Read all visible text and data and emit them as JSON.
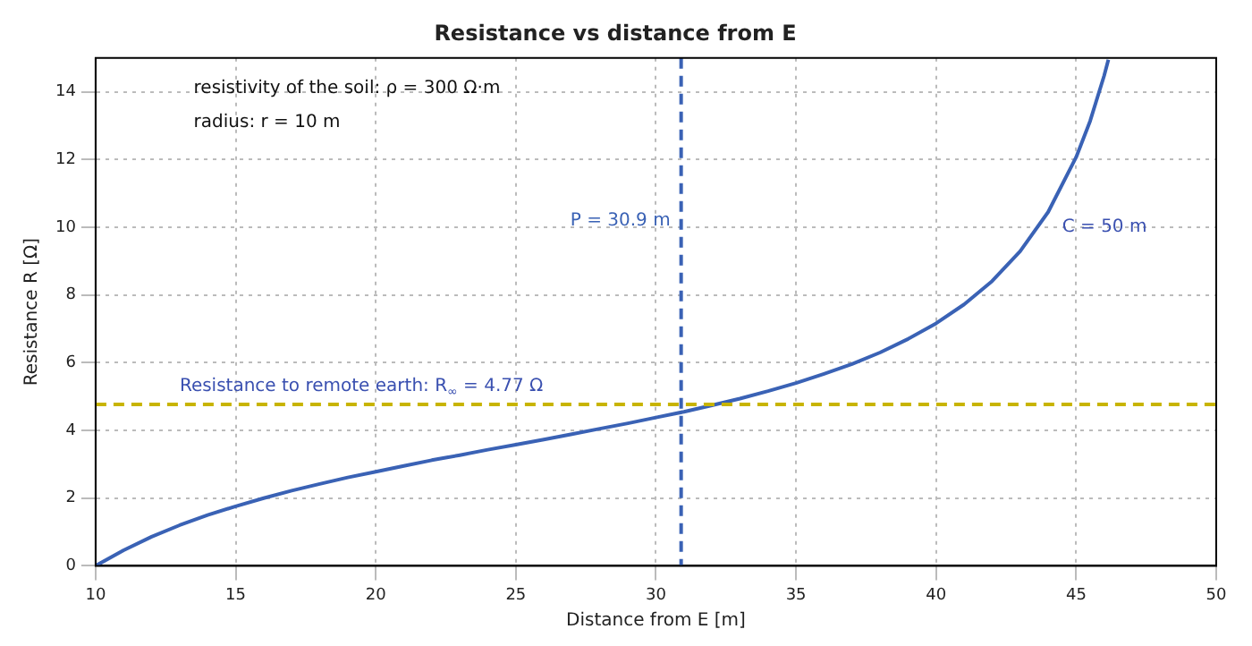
{
  "chart_data": {
    "type": "line",
    "title": "Resistance vs distance from E",
    "xlabel": "Distance from E [m]",
    "ylabel": "Resistance R [Ω]",
    "series": [
      {
        "color": "#3a62b5",
        "x": [
          10,
          11,
          12,
          13,
          14,
          15,
          16,
          17,
          18,
          19,
          20,
          21,
          22,
          23,
          24,
          25,
          26,
          27,
          28,
          29,
          30,
          31,
          32,
          33,
          34,
          35,
          36,
          37,
          38,
          39,
          40,
          41,
          42,
          43,
          44,
          45,
          45.5,
          46,
          46.15
        ],
        "values": [
          0,
          0.46,
          0.86,
          1.2,
          1.5,
          1.76,
          2,
          2.22,
          2.42,
          2.61,
          2.78,
          2.95,
          3.12,
          3.27,
          3.43,
          3.58,
          3.73,
          3.89,
          4.05,
          4.21,
          4.38,
          4.55,
          4.74,
          4.94,
          5.16,
          5.4,
          5.67,
          5.96,
          6.3,
          6.7,
          7.16,
          7.72,
          8.41,
          9.29,
          10.45,
          12.07,
          13.14,
          14.48,
          14.95
        ]
      }
    ],
    "xlim": [
      10,
      50
    ],
    "xticks": [
      10,
      15,
      20,
      25,
      30,
      35,
      40,
      45,
      50
    ],
    "ylim": [
      0,
      15
    ],
    "yticks": [
      0,
      2,
      4,
      6,
      8,
      10,
      12,
      14
    ],
    "grid": true,
    "legend": false,
    "marker": "none",
    "line_style": "solid",
    "ref_lines": [
      {
        "axis": "x",
        "value": 30.9,
        "label": "P = 30.9 m",
        "color": "#3a62b5",
        "line_style": "dashed"
      },
      {
        "axis": "y",
        "value": 4.77,
        "label": "Resistance to remote earth: R$_{∞}$ = 4.77 Ω",
        "color": "#c8b400",
        "line_style": "dashed"
      }
    ],
    "annotations": [
      "resistivity of the soil: ρ = 300 Ω·m",
      "radius: r = 10 m",
      "C = 50 m"
    ]
  }
}
